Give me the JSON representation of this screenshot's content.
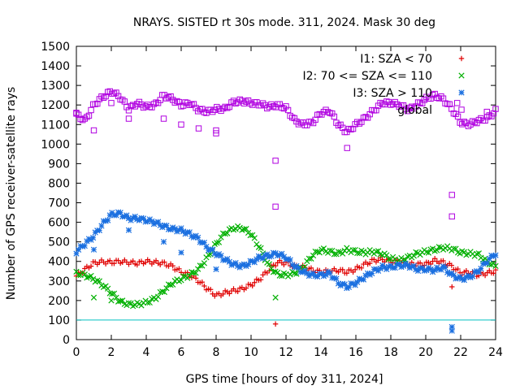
{
  "chart_data": {
    "type": "scatter",
    "title": "NRAYS. SISTED rt 30s mode. 311, 2024. Mask 30 deg",
    "xlabel": "GPS time [hours of doy 311, 2024]",
    "ylabel": "Number of GPS receiver-satellite rays",
    "xlim": [
      0,
      24
    ],
    "ylim": [
      0,
      1500
    ],
    "xticks": [
      0,
      2,
      4,
      6,
      8,
      10,
      12,
      14,
      16,
      18,
      20,
      22,
      24
    ],
    "yticks": [
      0,
      100,
      200,
      300,
      400,
      500,
      600,
      700,
      800,
      900,
      1000,
      1100,
      1200,
      1300,
      1400,
      1500
    ],
    "threshold": {
      "value": 100,
      "color": "#00c0c0"
    },
    "legend_position": "top-right",
    "series": [
      {
        "name": "I1: SZA < 70",
        "marker": "+",
        "color": "#e00000",
        "points": [
          [
            0,
            325
          ],
          [
            0.5,
            360
          ],
          [
            1,
            392
          ],
          [
            1.5,
            398
          ],
          [
            2,
            395
          ],
          [
            2.5,
            400
          ],
          [
            3,
            395
          ],
          [
            3.5,
            390
          ],
          [
            4,
            400
          ],
          [
            4.5,
            395
          ],
          [
            5,
            390
          ],
          [
            5.5,
            375
          ],
          [
            6,
            345
          ],
          [
            6.5,
            330
          ],
          [
            7,
            300
          ],
          [
            7.5,
            260
          ],
          [
            8,
            225
          ],
          [
            8.5,
            240
          ],
          [
            9,
            250
          ],
          [
            9.5,
            260
          ],
          [
            10,
            280
          ],
          [
            10.5,
            310
          ],
          [
            11,
            355
          ],
          [
            11.5,
            395
          ],
          [
            12,
            392
          ],
          [
            12.5,
            375
          ],
          [
            13,
            370
          ],
          [
            13.5,
            355
          ],
          [
            14,
            345
          ],
          [
            14.5,
            350
          ],
          [
            15,
            355
          ],
          [
            15.5,
            345
          ],
          [
            16,
            360
          ],
          [
            16.5,
            385
          ],
          [
            17,
            405
          ],
          [
            17.5,
            410
          ],
          [
            18,
            400
          ],
          [
            18.5,
            400
          ],
          [
            19,
            385
          ],
          [
            19.5,
            385
          ],
          [
            20,
            385
          ],
          [
            20.5,
            405
          ],
          [
            21,
            395
          ],
          [
            21.5,
            375
          ],
          [
            22,
            340
          ],
          [
            22.5,
            345
          ],
          [
            23,
            330
          ],
          [
            23.5,
            340
          ],
          [
            24,
            350
          ]
        ],
        "outliers": [
          [
            11.4,
            80
          ],
          [
            21.5,
            270
          ]
        ]
      },
      {
        "name": "I2: 70 <= SZA <= 110",
        "marker": "x",
        "color": "#00b000",
        "points": [
          [
            0,
            340
          ],
          [
            0.5,
            330
          ],
          [
            1,
            310
          ],
          [
            1.5,
            280
          ],
          [
            2,
            240
          ],
          [
            2.5,
            195
          ],
          [
            3,
            180
          ],
          [
            3.5,
            180
          ],
          [
            4,
            190
          ],
          [
            4.5,
            210
          ],
          [
            5,
            250
          ],
          [
            5.5,
            290
          ],
          [
            6,
            310
          ],
          [
            6.5,
            330
          ],
          [
            7,
            360
          ],
          [
            7.5,
            420
          ],
          [
            8,
            490
          ],
          [
            8.5,
            545
          ],
          [
            9,
            570
          ],
          [
            9.5,
            570
          ],
          [
            10,
            540
          ],
          [
            10.5,
            470
          ],
          [
            11,
            380
          ],
          [
            11.5,
            335
          ],
          [
            12,
            330
          ],
          [
            12.5,
            340
          ],
          [
            13,
            370
          ],
          [
            13.5,
            430
          ],
          [
            14,
            460
          ],
          [
            14.5,
            450
          ],
          [
            15,
            440
          ],
          [
            15.5,
            460
          ],
          [
            16,
            450
          ],
          [
            16.5,
            445
          ],
          [
            17,
            450
          ],
          [
            17.5,
            440
          ],
          [
            18,
            415
          ],
          [
            18.5,
            405
          ],
          [
            19,
            420
          ],
          [
            19.5,
            440
          ],
          [
            20,
            450
          ],
          [
            20.5,
            460
          ],
          [
            21,
            470
          ],
          [
            21.5,
            465
          ],
          [
            22,
            445
          ],
          [
            22.5,
            440
          ],
          [
            23,
            435
          ],
          [
            23.5,
            400
          ],
          [
            24,
            375
          ]
        ],
        "outliers": [
          [
            1,
            215
          ],
          [
            2,
            200
          ],
          [
            11.4,
            215
          ]
        ]
      },
      {
        "name": "I3: SZA > 110",
        "marker": "*",
        "color": "#1a6fe0",
        "points": [
          [
            0,
            450
          ],
          [
            0.5,
            490
          ],
          [
            1,
            530
          ],
          [
            1.5,
            590
          ],
          [
            2,
            640
          ],
          [
            2.5,
            645
          ],
          [
            3,
            620
          ],
          [
            3.5,
            620
          ],
          [
            4,
            610
          ],
          [
            4.5,
            600
          ],
          [
            5,
            580
          ],
          [
            5.5,
            565
          ],
          [
            6,
            560
          ],
          [
            6.5,
            540
          ],
          [
            7,
            515
          ],
          [
            7.5,
            470
          ],
          [
            8,
            440
          ],
          [
            8.5,
            410
          ],
          [
            9,
            385
          ],
          [
            9.5,
            375
          ],
          [
            10,
            395
          ],
          [
            10.5,
            420
          ],
          [
            11,
            430
          ],
          [
            11.5,
            440
          ],
          [
            12,
            420
          ],
          [
            12.5,
            375
          ],
          [
            13,
            345
          ],
          [
            13.5,
            330
          ],
          [
            14,
            330
          ],
          [
            14.5,
            340
          ],
          [
            15,
            290
          ],
          [
            15.5,
            270
          ],
          [
            16,
            290
          ],
          [
            16.5,
            320
          ],
          [
            17,
            350
          ],
          [
            17.5,
            370
          ],
          [
            18,
            370
          ],
          [
            18.5,
            380
          ],
          [
            19,
            380
          ],
          [
            19.5,
            360
          ],
          [
            20,
            360
          ],
          [
            20.5,
            355
          ],
          [
            21,
            370
          ],
          [
            21.5,
            330
          ],
          [
            22,
            310
          ],
          [
            22.5,
            320
          ],
          [
            23,
            350
          ],
          [
            23.5,
            400
          ],
          [
            24,
            440
          ]
        ],
        "outliers": [
          [
            1,
            460
          ],
          [
            3,
            560
          ],
          [
            5,
            500
          ],
          [
            6,
            445
          ],
          [
            8,
            360
          ],
          [
            21.5,
            65
          ],
          [
            21.5,
            45
          ]
        ]
      },
      {
        "name": "global",
        "marker": "square",
        "color": "#b000e0",
        "points": [
          [
            0,
            1150
          ],
          [
            0.5,
            1120
          ],
          [
            1,
            1200
          ],
          [
            1.5,
            1240
          ],
          [
            2,
            1270
          ],
          [
            2.5,
            1240
          ],
          [
            3,
            1180
          ],
          [
            3.5,
            1210
          ],
          [
            4,
            1190
          ],
          [
            4.5,
            1200
          ],
          [
            5,
            1250
          ],
          [
            5.5,
            1230
          ],
          [
            6,
            1200
          ],
          [
            6.5,
            1210
          ],
          [
            7,
            1175
          ],
          [
            7.5,
            1165
          ],
          [
            8,
            1180
          ],
          [
            8.5,
            1180
          ],
          [
            9,
            1215
          ],
          [
            9.5,
            1220
          ],
          [
            10,
            1210
          ],
          [
            10.5,
            1205
          ],
          [
            11,
            1190
          ],
          [
            11.5,
            1200
          ],
          [
            12,
            1185
          ],
          [
            12.5,
            1120
          ],
          [
            13,
            1100
          ],
          [
            13.5,
            1110
          ],
          [
            14,
            1160
          ],
          [
            14.5,
            1170
          ],
          [
            15,
            1100
          ],
          [
            15.5,
            1060
          ],
          [
            16,
            1100
          ],
          [
            16.5,
            1130
          ],
          [
            17,
            1170
          ],
          [
            17.5,
            1210
          ],
          [
            18,
            1210
          ],
          [
            18.5,
            1200
          ],
          [
            19,
            1175
          ],
          [
            19.5,
            1200
          ],
          [
            20,
            1230
          ],
          [
            20.5,
            1250
          ],
          [
            21,
            1230
          ],
          [
            21.5,
            1180
          ],
          [
            22,
            1110
          ],
          [
            22.5,
            1100
          ],
          [
            23,
            1120
          ],
          [
            23.5,
            1130
          ],
          [
            24,
            1170
          ]
        ],
        "outliers": [
          [
            0,
            1160
          ],
          [
            1,
            1070
          ],
          [
            2,
            1210
          ],
          [
            3,
            1130
          ],
          [
            5,
            1130
          ],
          [
            6,
            1100
          ],
          [
            7,
            1080
          ],
          [
            8,
            1070
          ],
          [
            8,
            1055
          ],
          [
            11.4,
            915
          ],
          [
            11.4,
            680
          ],
          [
            15.5,
            980
          ],
          [
            21.5,
            740
          ],
          [
            21.5,
            630
          ],
          [
            21.8,
            1210
          ],
          [
            23.5,
            1165
          ]
        ]
      }
    ]
  }
}
